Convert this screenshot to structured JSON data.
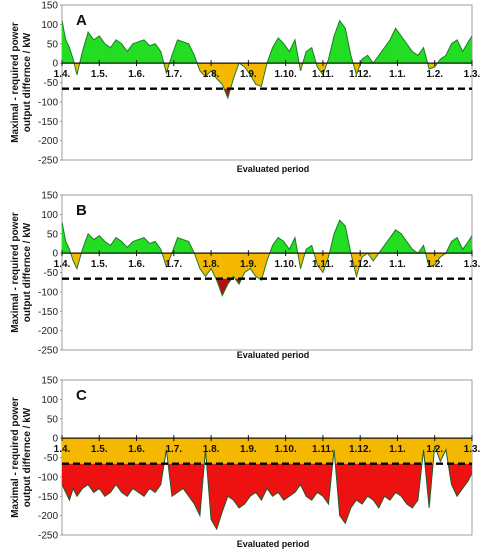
{
  "chart_data": [
    {
      "type": "area",
      "panel_label": "A",
      "ylabel": "Maximal - required power output differnce / kW",
      "xlabel": "Evaluated period",
      "ylim": [
        -250,
        150
      ],
      "yticks": [
        150,
        100,
        50,
        0,
        -50,
        -100,
        -150,
        -200,
        -250
      ],
      "x_ticks": [
        "1.4.",
        "1.5.",
        "1.6.",
        "1.7.",
        "1.8.",
        "1.9.",
        "1.10.",
        "1.11.",
        "1.12.",
        "1.1.",
        "1.2.",
        "1.3."
      ],
      "threshold": -66,
      "positive_color": "#22dd22",
      "negative_color": "#f5b800",
      "deep_color": "#b01010",
      "line_color": "#1f7a2a",
      "threshold_color": "#000000",
      "x": [
        0,
        0.1,
        0.2,
        0.3,
        0.4,
        0.55,
        0.7,
        0.85,
        1.0,
        1.15,
        1.3,
        1.45,
        1.6,
        1.75,
        1.9,
        2.05,
        2.2,
        2.35,
        2.5,
        2.65,
        2.8,
        2.95,
        3.1,
        3.25,
        3.4,
        3.55,
        3.7,
        3.85,
        4.0,
        4.15,
        4.3,
        4.45,
        4.6,
        4.75,
        4.9,
        5.05,
        5.2,
        5.35,
        5.5,
        5.65,
        5.8,
        5.95,
        6.1,
        6.25,
        6.4,
        6.55,
        6.7,
        6.85,
        7.0,
        7.15,
        7.3,
        7.45,
        7.6,
        7.75,
        7.9,
        8.05,
        8.2,
        8.35,
        8.5,
        8.65,
        8.8,
        8.95,
        9.1,
        9.25,
        9.4,
        9.55,
        9.7,
        9.85,
        10.0,
        10.15,
        10.3,
        10.45,
        10.6,
        10.75,
        10.9,
        11.0
      ],
      "values": [
        110,
        60,
        40,
        10,
        -30,
        30,
        80,
        60,
        70,
        50,
        40,
        60,
        50,
        30,
        50,
        55,
        60,
        45,
        50,
        30,
        -25,
        20,
        60,
        55,
        50,
        20,
        -20,
        -35,
        -20,
        -40,
        -55,
        -90,
        -40,
        0,
        -10,
        -30,
        -55,
        -60,
        0,
        40,
        65,
        50,
        30,
        60,
        -20,
        30,
        40,
        -10,
        -30,
        10,
        70,
        110,
        90,
        20,
        -30,
        10,
        20,
        0,
        20,
        40,
        60,
        90,
        70,
        50,
        30,
        20,
        40,
        -15,
        -10,
        10,
        20,
        50,
        60,
        30,
        55,
        70
      ]
    },
    {
      "type": "area",
      "panel_label": "B",
      "ylabel": "Maximal - required power output differnce / kW",
      "xlabel": "Evaluated period",
      "ylim": [
        -250,
        150
      ],
      "yticks": [
        150,
        100,
        50,
        0,
        -50,
        -100,
        -150,
        -200,
        -250
      ],
      "x_ticks": [
        "1.4.",
        "1.5.",
        "1.6.",
        "1.7.",
        "1.8.",
        "1.9.",
        "1.10.",
        "1.11.",
        "1.12.",
        "1.1.",
        "1.2.",
        "1.3."
      ],
      "threshold": -66,
      "positive_color": "#22dd22",
      "negative_color": "#f5b800",
      "deep_color": "#b01010",
      "line_color": "#1f7a2a",
      "threshold_color": "#000000",
      "x": [
        0,
        0.1,
        0.2,
        0.3,
        0.4,
        0.55,
        0.7,
        0.85,
        1.0,
        1.15,
        1.3,
        1.45,
        1.6,
        1.75,
        1.9,
        2.05,
        2.2,
        2.35,
        2.5,
        2.65,
        2.8,
        2.95,
        3.1,
        3.25,
        3.4,
        3.55,
        3.7,
        3.85,
        4.0,
        4.15,
        4.3,
        4.45,
        4.6,
        4.75,
        4.9,
        5.05,
        5.2,
        5.35,
        5.5,
        5.65,
        5.8,
        5.95,
        6.1,
        6.25,
        6.4,
        6.55,
        6.7,
        6.85,
        7.0,
        7.15,
        7.3,
        7.45,
        7.6,
        7.75,
        7.9,
        8.05,
        8.2,
        8.35,
        8.5,
        8.65,
        8.8,
        8.95,
        9.1,
        9.25,
        9.4,
        9.55,
        9.7,
        9.85,
        10.0,
        10.15,
        10.3,
        10.45,
        10.6,
        10.75,
        10.9,
        11.0
      ],
      "values": [
        80,
        30,
        10,
        -20,
        -40,
        10,
        50,
        35,
        45,
        30,
        20,
        40,
        30,
        15,
        30,
        35,
        40,
        25,
        30,
        10,
        -35,
        0,
        40,
        35,
        30,
        0,
        -40,
        -60,
        -40,
        -70,
        -110,
        -80,
        -60,
        -80,
        -50,
        -40,
        -60,
        -70,
        -20,
        20,
        40,
        30,
        10,
        40,
        -40,
        10,
        20,
        -30,
        -50,
        -10,
        50,
        85,
        70,
        0,
        -60,
        -10,
        0,
        -20,
        0,
        20,
        40,
        60,
        50,
        30,
        10,
        0,
        20,
        -35,
        -30,
        -10,
        0,
        30,
        40,
        10,
        30,
        45
      ]
    },
    {
      "type": "area",
      "panel_label": "C",
      "ylabel": "Maximal - required power output differnce / kW",
      "xlabel": "Evaluated period",
      "ylim": [
        -250,
        150
      ],
      "yticks": [
        150,
        100,
        50,
        0,
        -50,
        -100,
        -150,
        -200,
        -250
      ],
      "x_ticks": [
        "1.4.",
        "1.5.",
        "1.6.",
        "1.7.",
        "1.8.",
        "1.9.",
        "1.10.",
        "1.11.",
        "1.12.",
        "1.1.",
        "1.2.",
        "1.3."
      ],
      "threshold": -66,
      "positive_color": "#22dd22",
      "negative_color": "#f5b800",
      "deep_color": "#ee1111",
      "line_color": "#1f5a2a",
      "threshold_color": "#000000",
      "x": [
        0,
        0.1,
        0.2,
        0.3,
        0.4,
        0.55,
        0.7,
        0.85,
        1.0,
        1.15,
        1.3,
        1.45,
        1.6,
        1.75,
        1.9,
        2.05,
        2.2,
        2.35,
        2.5,
        2.65,
        2.8,
        2.95,
        3.1,
        3.25,
        3.4,
        3.55,
        3.7,
        3.85,
        4.0,
        4.15,
        4.3,
        4.45,
        4.6,
        4.75,
        4.9,
        5.05,
        5.2,
        5.35,
        5.5,
        5.65,
        5.8,
        5.95,
        6.1,
        6.25,
        6.4,
        6.55,
        6.7,
        6.85,
        7.0,
        7.15,
        7.3,
        7.45,
        7.6,
        7.75,
        7.9,
        8.05,
        8.2,
        8.35,
        8.5,
        8.65,
        8.8,
        8.95,
        9.1,
        9.25,
        9.4,
        9.55,
        9.7,
        9.85,
        10.0,
        10.15,
        10.3,
        10.45,
        10.6,
        10.75,
        10.9,
        11.0
      ],
      "values": [
        -120,
        -140,
        -160,
        -130,
        -150,
        -130,
        -120,
        -140,
        -130,
        -150,
        -140,
        -120,
        -140,
        -150,
        -130,
        -140,
        -150,
        -130,
        -140,
        -120,
        -30,
        -150,
        -140,
        -130,
        -150,
        -170,
        -200,
        -30,
        -210,
        -235,
        -190,
        -150,
        -160,
        -180,
        -170,
        -150,
        -140,
        -160,
        -130,
        -150,
        -140,
        -160,
        -150,
        -140,
        -120,
        -150,
        -160,
        -140,
        -150,
        -170,
        -30,
        -200,
        -220,
        -180,
        -160,
        -170,
        -150,
        -160,
        -180,
        -150,
        -160,
        -140,
        -150,
        -170,
        -180,
        -160,
        -30,
        -180,
        -20,
        -60,
        -30,
        -120,
        -150,
        -130,
        -110,
        -90
      ]
    }
  ]
}
